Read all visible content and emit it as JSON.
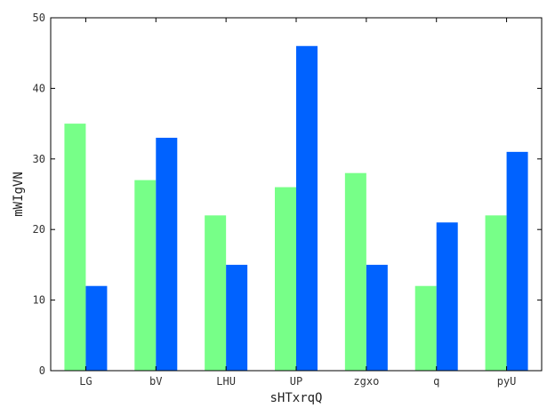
{
  "chart_data": {
    "type": "bar",
    "title": "",
    "xlabel": "sHTxrqQ",
    "ylabel": "mWIgVN",
    "categories": [
      "LG",
      "bV",
      "LHU",
      "UP",
      "zgxo",
      "q",
      "pyU"
    ],
    "series": [
      {
        "values": [
          35,
          27,
          22,
          26,
          28,
          12,
          22
        ],
        "color": "#77ff88"
      },
      {
        "values": [
          12,
          33,
          15,
          46,
          15,
          21,
          31
        ],
        "color": "#0062ff"
      }
    ],
    "ylim": [
      0,
      50
    ],
    "yticks": [
      0,
      10,
      20,
      30,
      40,
      50
    ],
    "grid": false,
    "legend": "none"
  }
}
